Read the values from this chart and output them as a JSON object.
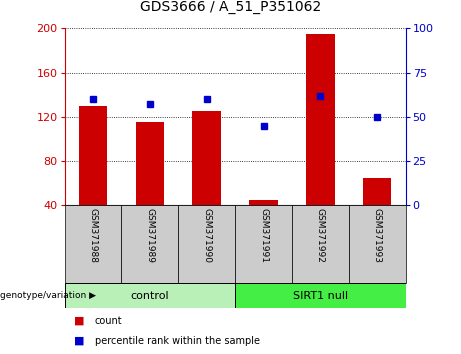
{
  "title": "GDS3666 / A_51_P351062",
  "samples": [
    "GSM371988",
    "GSM371989",
    "GSM371990",
    "GSM371991",
    "GSM371992",
    "GSM371993"
  ],
  "counts": [
    130,
    115,
    125,
    45,
    195,
    65
  ],
  "percentiles": [
    60,
    57,
    60,
    45,
    62,
    50
  ],
  "ylim_left": [
    40,
    200
  ],
  "ylim_right": [
    0,
    100
  ],
  "yticks_left": [
    40,
    80,
    120,
    160,
    200
  ],
  "yticks_right": [
    0,
    25,
    50,
    75,
    100
  ],
  "bar_color": "#cc0000",
  "dot_color": "#0000cc",
  "bar_width": 0.5,
  "control_color": "#b8f0b8",
  "sirt1_color": "#44ee44",
  "sample_box_color": "#cccccc",
  "legend_count_label": "count",
  "legend_pct_label": "percentile rank within the sample",
  "title_fontsize": 10,
  "tick_fontsize": 8,
  "sample_fontsize": 6.5,
  "group_fontsize": 8,
  "legend_fontsize": 7
}
